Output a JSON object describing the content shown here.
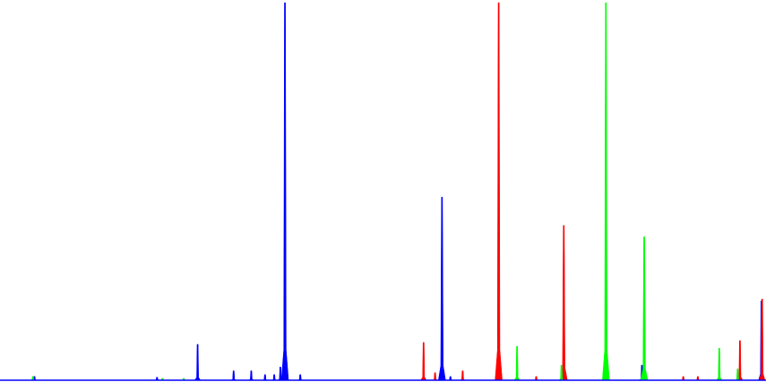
{
  "chart_data": {
    "type": "area",
    "title": "",
    "xlabel": "",
    "ylabel": "",
    "xlim": [
      0,
      1000
    ],
    "ylim": [
      0,
      100
    ],
    "grid": false,
    "legend": "none",
    "series": [
      {
        "color": "#0000ff",
        "peaks": [
          {
            "x": 45,
            "y": 1
          },
          {
            "x": 205,
            "y": 0.8
          },
          {
            "x": 258,
            "y": 9.5
          },
          {
            "x": 305,
            "y": 2.5
          },
          {
            "x": 328,
            "y": 2.5
          },
          {
            "x": 346,
            "y": 1.5
          },
          {
            "x": 358,
            "y": 1.5
          },
          {
            "x": 366,
            "y": 3.5
          },
          {
            "x": 372,
            "y": 100
          },
          {
            "x": 392,
            "y": 1.5
          },
          {
            "x": 577,
            "y": 48.5
          },
          {
            "x": 588,
            "y": 1
          },
          {
            "x": 838,
            "y": 4
          },
          {
            "x": 994,
            "y": 21
          }
        ]
      },
      {
        "color": "#ff0000",
        "peaks": [
          {
            "x": 553,
            "y": 10
          },
          {
            "x": 568,
            "y": 2
          },
          {
            "x": 604,
            "y": 2.5
          },
          {
            "x": 651,
            "y": 100
          },
          {
            "x": 700,
            "y": 1
          },
          {
            "x": 736,
            "y": 41
          },
          {
            "x": 892,
            "y": 1
          },
          {
            "x": 911,
            "y": 1
          },
          {
            "x": 966,
            "y": 10.5
          },
          {
            "x": 995,
            "y": 21.5
          }
        ]
      },
      {
        "color": "#00ff00",
        "peaks": [
          {
            "x": 43,
            "y": 1
          },
          {
            "x": 212,
            "y": 0.5
          },
          {
            "x": 240,
            "y": 0.5
          },
          {
            "x": 675,
            "y": 9
          },
          {
            "x": 733,
            "y": 4
          },
          {
            "x": 791,
            "y": 100
          },
          {
            "x": 841,
            "y": 38
          },
          {
            "x": 939,
            "y": 8.5
          },
          {
            "x": 963,
            "y": 3
          }
        ]
      }
    ]
  }
}
